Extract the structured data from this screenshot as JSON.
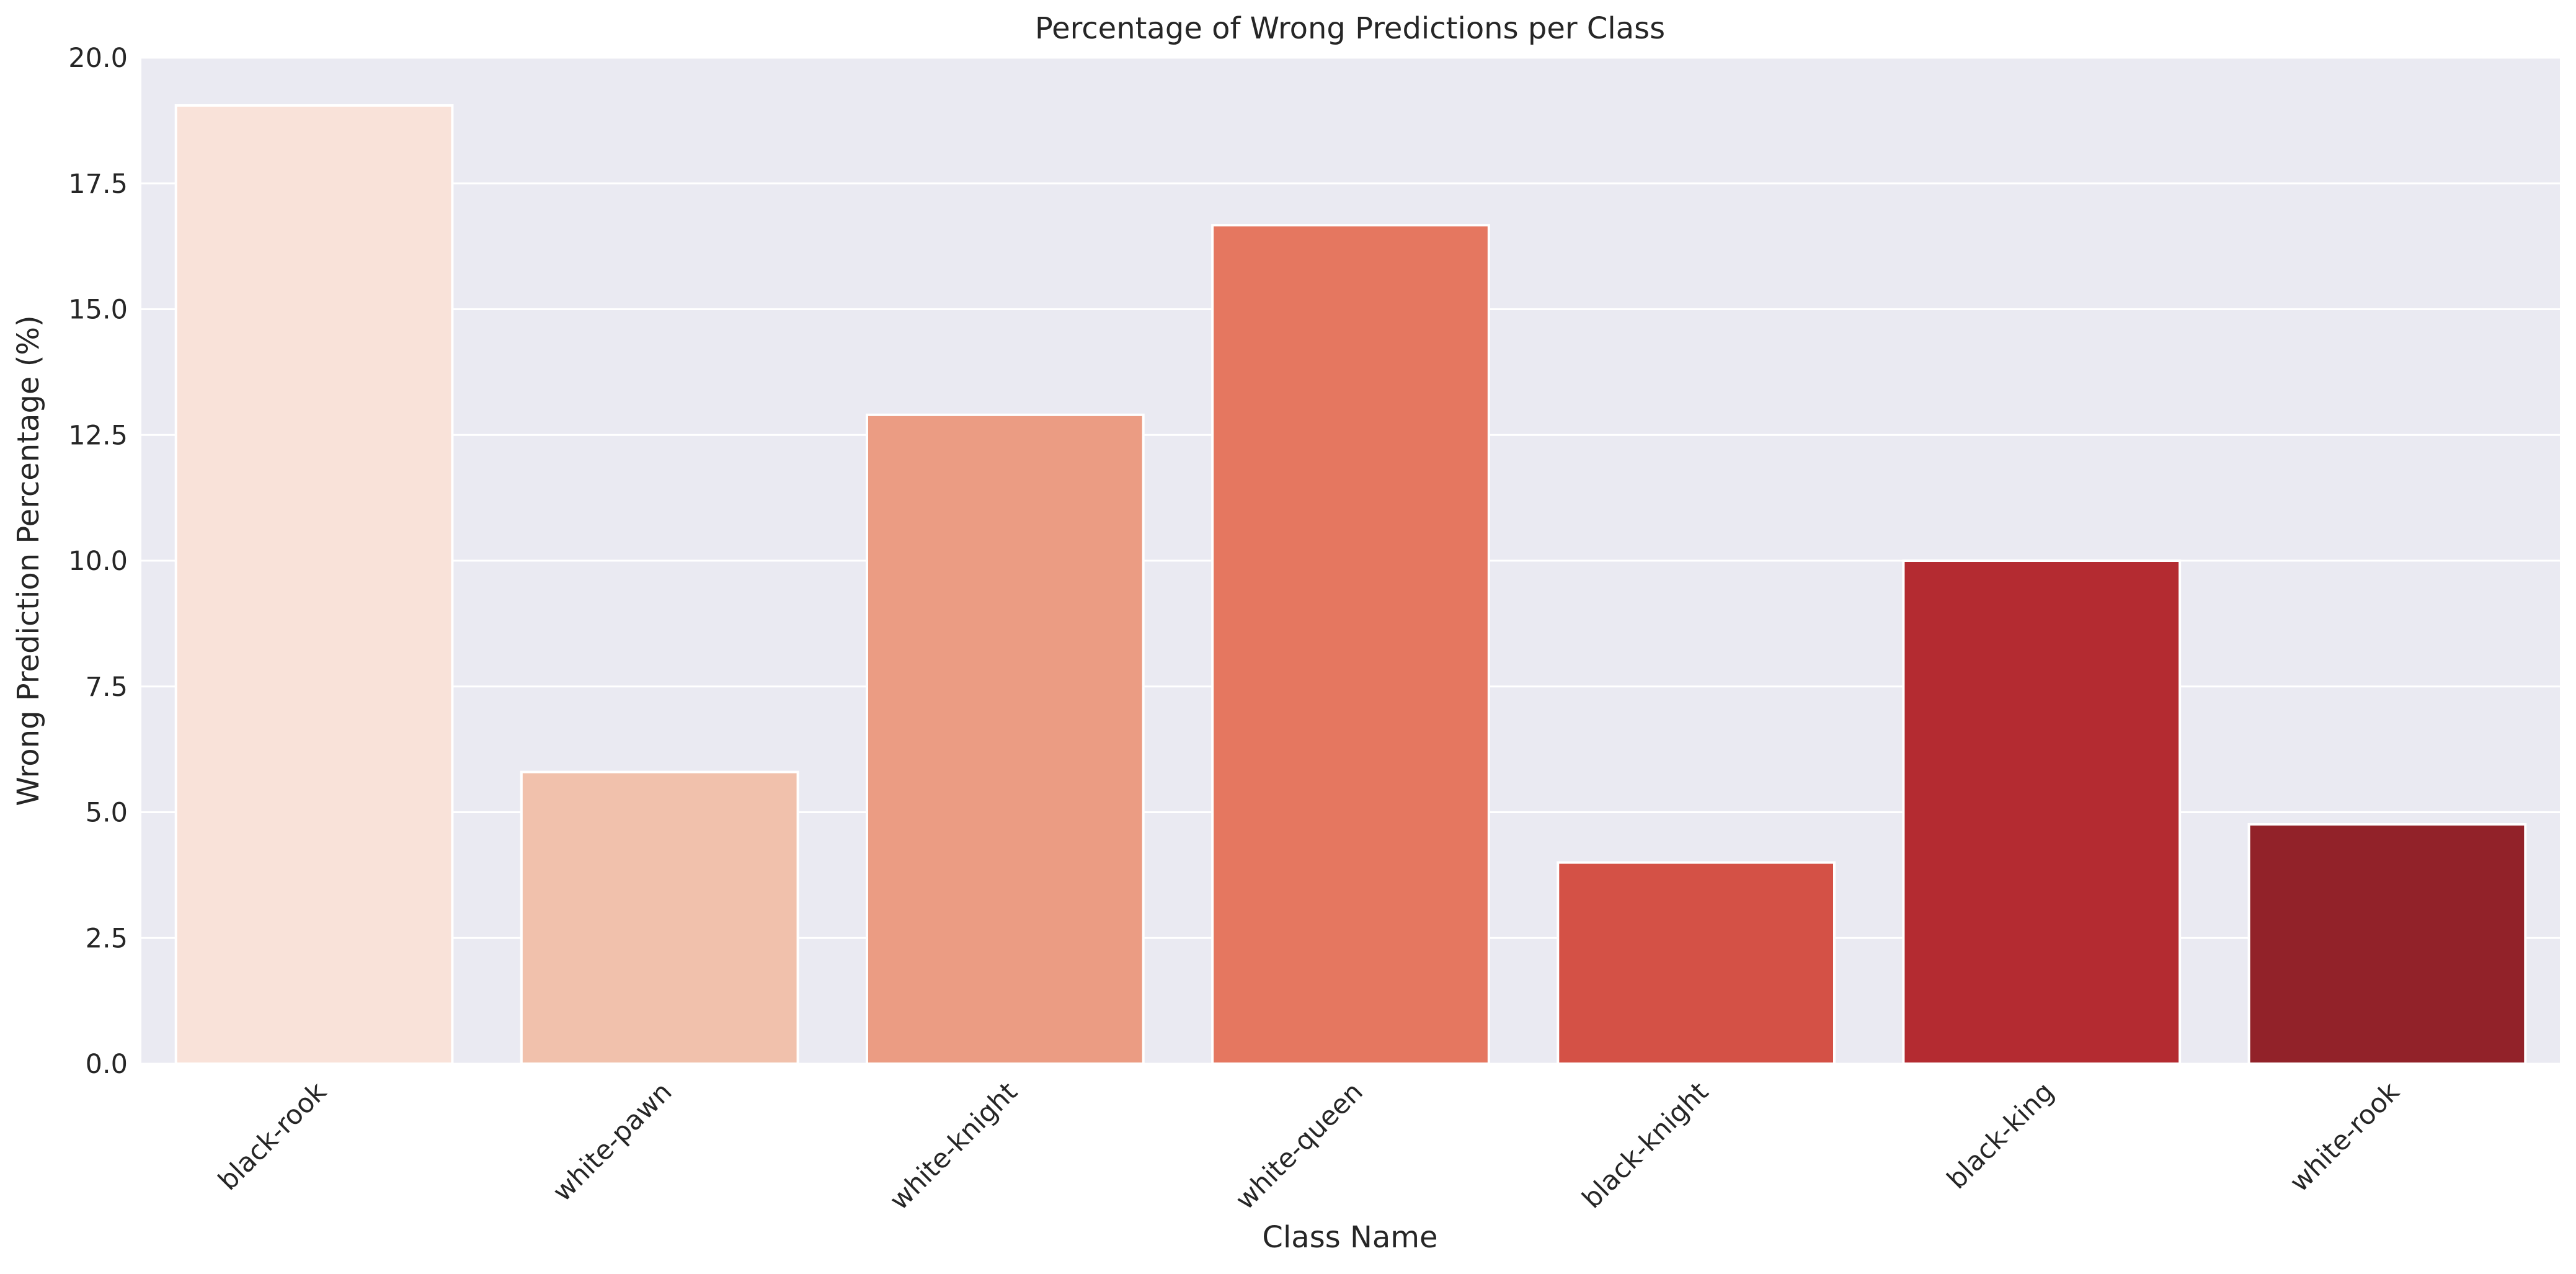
{
  "chart_data": {
    "type": "bar",
    "title": "Percentage of Wrong Predictions per Class",
    "xlabel": "Class Name",
    "ylabel": "Wrong Prediction Percentage (%)",
    "categories": [
      "black-rook",
      "white-pawn",
      "white-knight",
      "white-queen",
      "black-knight",
      "black-king",
      "white-rook"
    ],
    "values": [
      19.05,
      5.8,
      12.9,
      16.67,
      4.0,
      10.0,
      4.76
    ],
    "ylim": [
      0,
      20
    ],
    "yticks": [
      0.0,
      2.5,
      5.0,
      7.5,
      10.0,
      12.5,
      15.0,
      17.5,
      20.0
    ],
    "ytick_labels": [
      "0.0",
      "2.5",
      "5.0",
      "7.5",
      "10.0",
      "12.5",
      "15.0",
      "17.5",
      "20.0"
    ],
    "grid": true,
    "legend": "none",
    "xtick_rotation": -45,
    "colors": [
      "#f9e2d9",
      "#f1c1ac",
      "#eb9c83",
      "#e57760",
      "#d45146",
      "#b42b31",
      "#922229"
    ],
    "background_color": "#eaeaf2",
    "grid_color": "#ffffff",
    "bar_edge_color": "#ffffff"
  }
}
